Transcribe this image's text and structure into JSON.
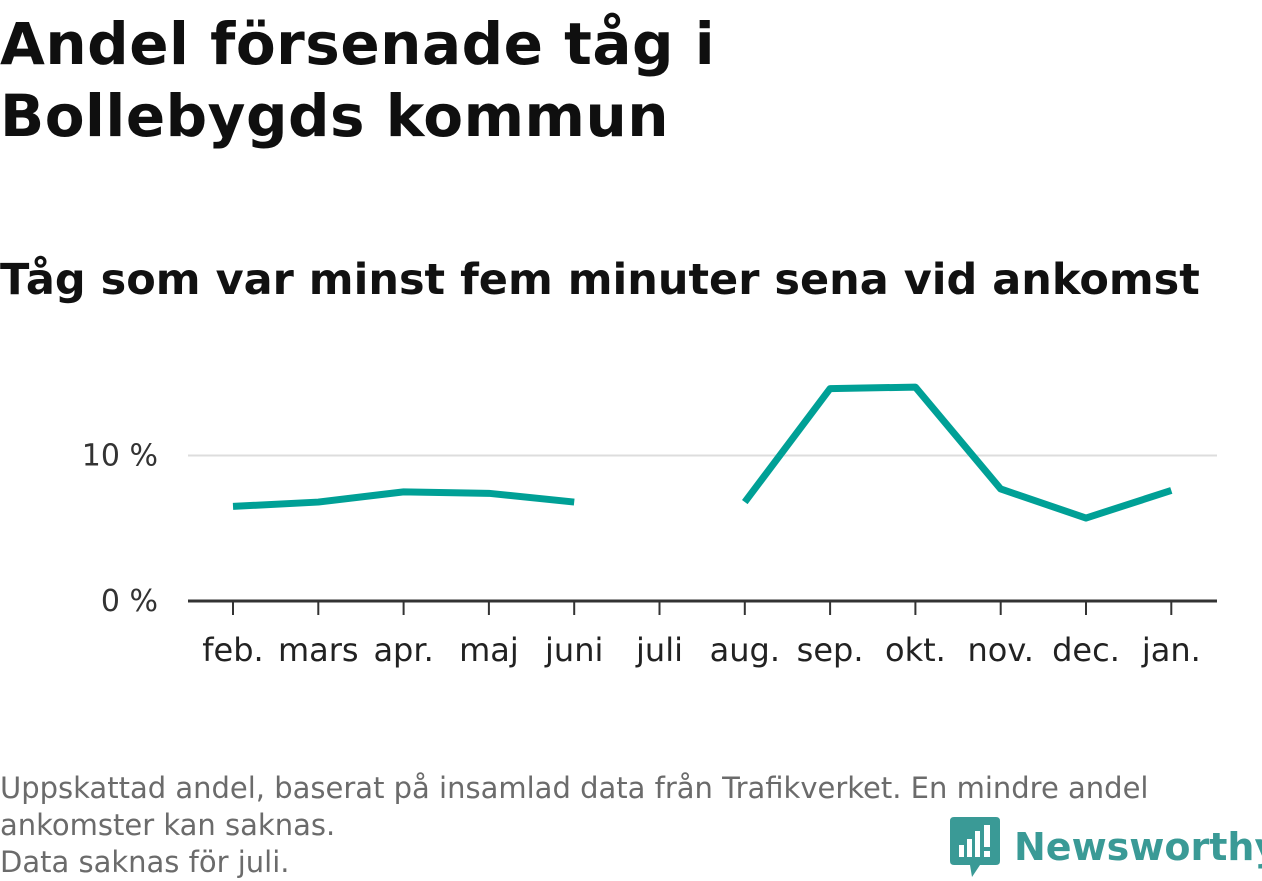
{
  "header": {
    "title": "Andel försenade tåg i Bollebygds kommun",
    "subtitle": "Tåg som var minst fem minuter sena vid ankomst"
  },
  "chart_data": {
    "type": "line",
    "categories": [
      "feb.",
      "mars",
      "apr.",
      "maj",
      "juni",
      "juli",
      "aug.",
      "sep.",
      "okt.",
      "nov.",
      "dec.",
      "jan."
    ],
    "series": [
      {
        "values": [
          6.5,
          6.8,
          7.5,
          7.4,
          6.8,
          null,
          6.8,
          14.6,
          14.7,
          7.7,
          5.7,
          7.6
        ]
      }
    ],
    "ylim": [
      0,
      17
    ],
    "yticks": [
      0,
      10
    ],
    "ytick_labels": [
      "0 %",
      "10 %"
    ],
    "grid": true,
    "colors": {
      "line": "#00a096",
      "grid": "#dddddd",
      "axis": "#333333"
    }
  },
  "footer": {
    "notes": [
      "Uppskattad andel, baserat på insamlad data från Trafikverket. En mindre andel",
      "ankomster kan saknas.",
      "Data saknas för juli."
    ],
    "brand": "Newsworthy",
    "brand_icon": "newsworthy-logo-icon",
    "brand_color": "#3a9a96"
  }
}
